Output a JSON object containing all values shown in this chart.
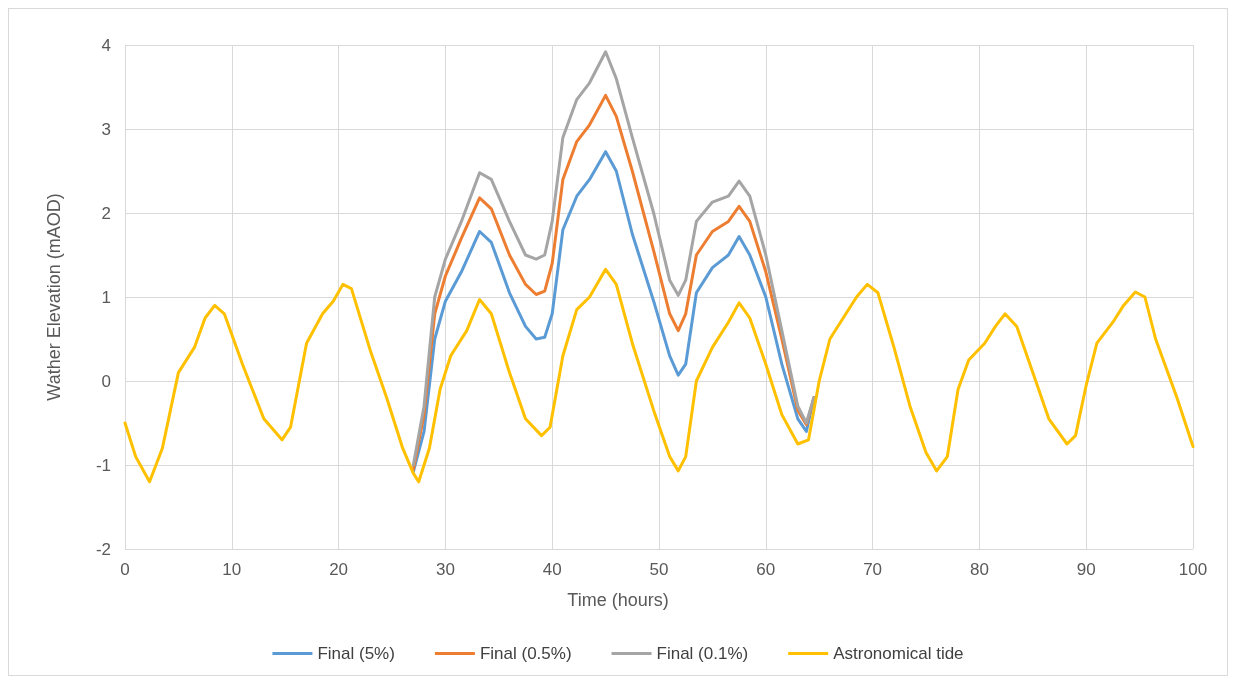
{
  "chart_data": {
    "type": "line",
    "xlabel": "Time (hours)",
    "ylabel": "Wather Elevation (mAOD)",
    "xlim": [
      0,
      100
    ],
    "xticks": [
      0,
      10,
      20,
      30,
      40,
      50,
      60,
      70,
      80,
      90,
      100
    ],
    "ylim": [
      -2,
      4
    ],
    "yticks": [
      -2,
      -1,
      0,
      1,
      2,
      3,
      4
    ],
    "grid": true,
    "legend": "bottom",
    "marker": "none",
    "line_style": "solid",
    "series": [
      {
        "name": "Final (5%)",
        "color": "#5b9bd5",
        "x": [
          27,
          28,
          29,
          30,
          31.5,
          33.2,
          34.3,
          36,
          37.5,
          38.5,
          39.3,
          40,
          41,
          42.3,
          43.5,
          45,
          46,
          47.5,
          49.5,
          51,
          51.8,
          52.5,
          53.5,
          55,
          56.5,
          57.5,
          58.5,
          60,
          61.5,
          63,
          63.8,
          64.5
        ],
        "values": [
          -1.08,
          -0.6,
          0.5,
          0.95,
          1.3,
          1.78,
          1.65,
          1.05,
          0.65,
          0.5,
          0.52,
          0.8,
          1.8,
          2.2,
          2.4,
          2.73,
          2.5,
          1.75,
          0.95,
          0.3,
          0.07,
          0.2,
          1.05,
          1.35,
          1.5,
          1.72,
          1.5,
          1.0,
          0.2,
          -0.45,
          -0.6,
          -0.2
        ]
      },
      {
        "name": "Final (0.5%)",
        "color": "#ed7d31",
        "x": [
          27,
          28,
          29,
          30,
          31.5,
          33.2,
          34.3,
          36,
          37.5,
          38.5,
          39.3,
          40,
          41,
          42.3,
          43.5,
          45,
          46,
          47.5,
          49.5,
          51,
          51.8,
          52.5,
          53.5,
          55,
          56.5,
          57.5,
          58.5,
          60,
          61.5,
          63,
          63.8,
          64.5
        ],
        "values": [
          -1.05,
          -0.4,
          0.8,
          1.25,
          1.7,
          2.18,
          2.05,
          1.5,
          1.15,
          1.03,
          1.07,
          1.4,
          2.4,
          2.85,
          3.05,
          3.4,
          3.15,
          2.5,
          1.55,
          0.8,
          0.6,
          0.8,
          1.5,
          1.78,
          1.9,
          2.08,
          1.9,
          1.3,
          0.5,
          -0.35,
          -0.52,
          -0.2
        ]
      },
      {
        "name": "Final (0.1%)",
        "color": "#a5a5a5",
        "x": [
          27,
          28,
          29,
          30,
          31.5,
          33.2,
          34.3,
          36,
          37.5,
          38.5,
          39.3,
          40,
          41,
          42.3,
          43.5,
          45,
          46,
          47.5,
          49.5,
          51,
          51.8,
          52.5,
          53.5,
          55,
          56.5,
          57.5,
          58.5,
          60,
          61.5,
          63,
          63.8,
          64.5
        ],
        "values": [
          -1.0,
          -0.3,
          1.0,
          1.45,
          1.9,
          2.48,
          2.4,
          1.9,
          1.5,
          1.45,
          1.5,
          1.9,
          2.9,
          3.35,
          3.55,
          3.92,
          3.6,
          2.9,
          2.0,
          1.2,
          1.02,
          1.2,
          1.9,
          2.13,
          2.2,
          2.38,
          2.2,
          1.5,
          0.6,
          -0.3,
          -0.5,
          -0.2
        ]
      },
      {
        "name": "Astronomical tide",
        "color": "#ffc000",
        "x": [
          0,
          1,
          2.3,
          3.5,
          5,
          6.5,
          7.5,
          8.4,
          9.3,
          11,
          13,
          14.7,
          15.5,
          17,
          18.5,
          19.5,
          20.4,
          21.2,
          23,
          24.5,
          26,
          27,
          27.5,
          28.5,
          29.5,
          30.5,
          32,
          33.2,
          34.3,
          36,
          37.5,
          39,
          39.8,
          41,
          42.3,
          43.5,
          45,
          46,
          47.5,
          49.5,
          51,
          51.8,
          52.5,
          53.5,
          55,
          56.5,
          57.5,
          58.5,
          60,
          61.5,
          63,
          64,
          65,
          66,
          67.5,
          68.5,
          69.5,
          70.5,
          72,
          73.5,
          75,
          76,
          77,
          78,
          79,
          80.5,
          81.5,
          82.4,
          83.5,
          85,
          86.5,
          88.2,
          89,
          90,
          91,
          92.5,
          93.5,
          94.6,
          95.5,
          96.5,
          98.5,
          100
        ],
        "values": [
          -0.5,
          -0.9,
          -1.2,
          -0.8,
          0.1,
          0.4,
          0.75,
          0.9,
          0.8,
          0.2,
          -0.45,
          -0.7,
          -0.55,
          0.45,
          0.8,
          0.95,
          1.15,
          1.1,
          0.35,
          -0.2,
          -0.8,
          -1.1,
          -1.2,
          -0.8,
          -0.1,
          0.3,
          0.6,
          0.97,
          0.8,
          0.1,
          -0.45,
          -0.65,
          -0.55,
          0.3,
          0.85,
          1.0,
          1.33,
          1.15,
          0.45,
          -0.35,
          -0.9,
          -1.07,
          -0.9,
          0.0,
          0.4,
          0.7,
          0.93,
          0.75,
          0.2,
          -0.4,
          -0.75,
          -0.7,
          0.0,
          0.5,
          0.8,
          1.0,
          1.15,
          1.05,
          0.4,
          -0.3,
          -0.85,
          -1.07,
          -0.9,
          -0.1,
          0.25,
          0.45,
          0.65,
          0.8,
          0.65,
          0.1,
          -0.45,
          -0.75,
          -0.65,
          -0.05,
          0.45,
          0.7,
          0.9,
          1.06,
          1.0,
          0.5,
          -0.2,
          -0.78
        ]
      }
    ]
  }
}
